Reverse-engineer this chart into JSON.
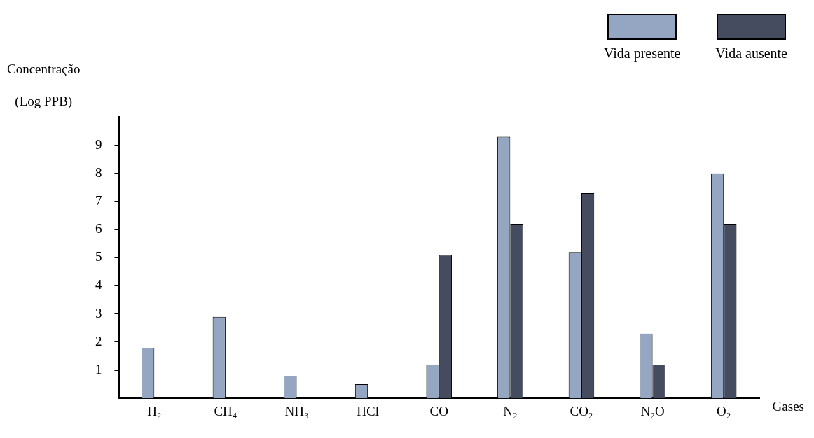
{
  "chart_data": {
    "type": "bar",
    "ylabel": "Concentração\n(Log PPB)",
    "xlabel": "Gases",
    "categories": [
      "H₂",
      "CH₄",
      "NH₃",
      "HCl",
      "CO",
      "N₂",
      "CO₂",
      "N₂O",
      "O₂"
    ],
    "series": [
      {
        "name": "Vida presente",
        "color": "#94a6c1",
        "values": [
          1.8,
          2.9,
          0.8,
          0.5,
          1.2,
          9.3,
          5.2,
          2.3,
          8.0
        ]
      },
      {
        "name": "Vida ausente",
        "color": "#454c60",
        "values": [
          null,
          null,
          null,
          null,
          5.1,
          6.2,
          7.3,
          1.2,
          6.2
        ]
      }
    ],
    "ylim": [
      0,
      10
    ],
    "yticks": [
      1,
      2,
      3,
      4,
      5,
      6,
      7,
      8,
      9
    ],
    "grid": false,
    "legend": "top right"
  }
}
